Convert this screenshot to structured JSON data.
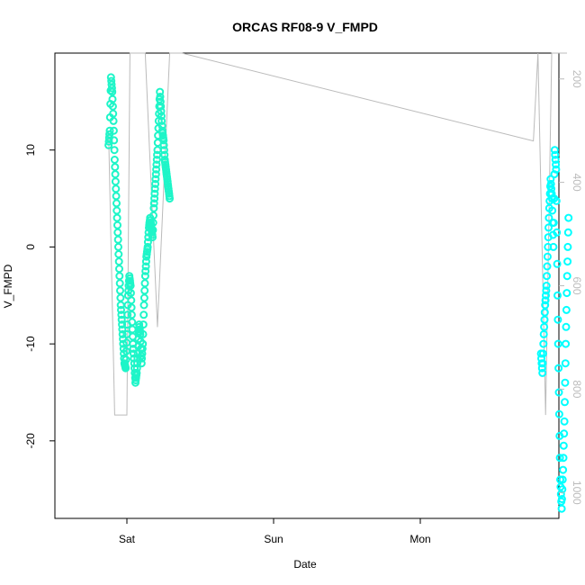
{
  "chart_data": {
    "type": "line",
    "title": "ORCAS RF08-9 V_FMPD",
    "xlabel": "Date",
    "ylabel": "V_FMPD",
    "x_ticks": [
      "Sat",
      "Sun",
      "Mon"
    ],
    "y_ticks": [
      -20,
      -10,
      0,
      10
    ],
    "ylim": [
      -28,
      20
    ],
    "right_axis": {
      "ticks": [
        200,
        400,
        600,
        800,
        1000
      ],
      "lim": [
        1050,
        150
      ],
      "color": "#bbbbbb"
    },
    "grid": false,
    "colors": {
      "series_early": "#1ef5c8",
      "series_late": "#00ffff",
      "secondary": "#bbbbbb"
    },
    "series": [
      {
        "axis": "left",
        "style": "points",
        "segments": [
          {
            "color": "#1ef5c8",
            "x": [
              0.0,
              0.02,
              0.04,
              0.06,
              0.08,
              0.1,
              0.12,
              0.14,
              0.16,
              0.18,
              0.2,
              0.22,
              0.24,
              0.26,
              0.28,
              0.3,
              0.32,
              0.34,
              0.36,
              0.38,
              0.4,
              0.42,
              0.44,
              0.46,
              0.48,
              0.5,
              0.52,
              0.54,
              0.56,
              0.58,
              0.6,
              0.62,
              0.64,
              0.66,
              0.68,
              0.7,
              0.72,
              0.74,
              0.76,
              0.78,
              0.8,
              0.82,
              0.84,
              0.86,
              0.88,
              0.9,
              0.92,
              0.94,
              0.96,
              0.98,
              1.0
            ],
            "y": [
              10.5,
              12,
              17.5,
              16,
              13,
              9,
              6,
              3,
              0,
              -3,
              -6,
              -8,
              -10,
              -12,
              -12.5,
              -9,
              -5,
              -3,
              -4,
              -7,
              -10,
              -12,
              -14,
              -13,
              -11,
              -8,
              -9,
              -12,
              -10,
              -6,
              -3,
              -1,
              0,
              2,
              3,
              2,
              1,
              4,
              6,
              8,
              10,
              13,
              16,
              14,
              12,
              11,
              9,
              8,
              7,
              6,
              5
            ],
            "x_start": "Fri 21:00",
            "x_end": "Sat 07:00"
          },
          {
            "color": "#00ffff",
            "x": [
              0.0,
              0.05,
              0.1,
              0.15,
              0.2,
              0.25,
              0.3,
              0.35,
              0.4,
              0.45,
              0.5,
              0.55,
              0.6,
              0.65,
              0.7,
              0.75,
              0.8,
              0.85,
              0.9,
              0.95,
              1.0
            ],
            "y": [
              -11,
              -13,
              -9,
              -6,
              -4,
              0,
              4,
              7,
              5,
              0,
              10,
              8,
              -5,
              -15,
              -24,
              -27,
              -23,
              -18,
              -10,
              -3,
              3
            ],
            "x_start": "Mon 19:45",
            "x_end": "Tue 00:15"
          }
        ]
      },
      {
        "axis": "right",
        "style": "line",
        "color": "#bbbbbb",
        "points": [
          {
            "t": "Fri 21:00",
            "v": 300
          },
          {
            "t": "Fri 22:00",
            "v": 850
          },
          {
            "t": "Sat 00:00",
            "v": 850
          },
          {
            "t": "Sat 00:30",
            "v": 150
          },
          {
            "t": "Sat 03:00",
            "v": 150
          },
          {
            "t": "Sat 05:00",
            "v": 680
          },
          {
            "t": "Sat 07:00",
            "v": 150
          },
          {
            "t": "Sat 09:00",
            "v": 150
          },
          {
            "t": "Mon 18:30",
            "v": 320
          },
          {
            "t": "Mon 19:15",
            "v": 150
          },
          {
            "t": "Mon 20:30",
            "v": 850
          },
          {
            "t": "Mon 21:30",
            "v": 150
          },
          {
            "t": "Tue 00:00",
            "v": 150
          }
        ]
      }
    ]
  }
}
